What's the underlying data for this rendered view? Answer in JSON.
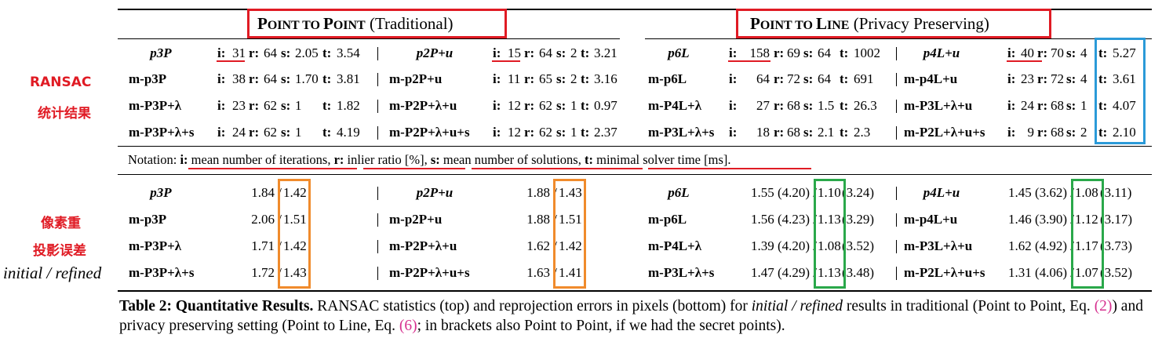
{
  "headers": {
    "left": {
      "big1": "P",
      "small1": "OINT TO ",
      "big2": "P",
      "small2": "OINT",
      "rest": " (Traditional)"
    },
    "right": {
      "big1": "P",
      "small1": "OINT TO ",
      "big2": "L",
      "small2": "INE",
      "rest": " (Privacy Preserving)"
    }
  },
  "side_labels": {
    "ransac_line1": "RANSAC",
    "ransac_line2": "统计结果",
    "reproj_line1": "像素重",
    "reproj_line2": "投影误差",
    "initial_refined": "initial / refined"
  },
  "stat_labels": {
    "i": "i:",
    "r": "r:",
    "s": "s:",
    "t": "t:"
  },
  "ransac": {
    "left": [
      {
        "m1": "p3P",
        "i1": "31",
        "r1": "64",
        "s1": "2.05",
        "t1": "3.54",
        "m2": "p2P+u",
        "i2": "15",
        "r2": "64",
        "s2": "2",
        "t2": "3.21"
      },
      {
        "m1": "m-p3P",
        "i1": "38",
        "r1": "64",
        "s1": "1.70",
        "t1": "3.81",
        "m2": "m-p2P+u",
        "i2": "11",
        "r2": "65",
        "s2": "2",
        "t2": "3.16"
      },
      {
        "m1": "m-P3P+λ",
        "i1": "23",
        "r1": "62",
        "s1": "1",
        "t1": "1.82",
        "m2": "m-P2P+λ+u",
        "i2": "12",
        "r2": "62",
        "s2": "1",
        "t2": "0.97"
      },
      {
        "m1": "m-P3P+λ+s",
        "i1": "24",
        "r1": "62",
        "s1": "1",
        "t1": "4.19",
        "m2": "m-P2P+λ+u+s",
        "i2": "12",
        "r2": "62",
        "s2": "1",
        "t2": "2.37"
      }
    ],
    "right": [
      {
        "m1": "p6L",
        "i1": "158",
        "r1": "69",
        "s1": "64",
        "t1": "1002",
        "m2": "p4L+u",
        "i2": "40",
        "r2": "70",
        "s2": "4",
        "t2": "5.27"
      },
      {
        "m1": "m-p6L",
        "i1": "64",
        "r1": "72",
        "s1": "64",
        "t1": "691",
        "m2": "m-p4L+u",
        "i2": "23",
        "r2": "72",
        "s2": "4",
        "t2": "3.61"
      },
      {
        "m1": "m-P4L+λ",
        "i1": "27",
        "r1": "68",
        "s1": "1.5",
        "t1": "26.3",
        "m2": "m-P3L+λ+u",
        "i2": "24",
        "r2": "68",
        "s2": "1",
        "t2": "4.07"
      },
      {
        "m1": "m-P3L+λ+s",
        "i1": "18",
        "r1": "68",
        "s1": "2.1",
        "t1": "2.3",
        "m2": "m-P2L+λ+u+s",
        "i2": "9",
        "r2": "68",
        "s2": "2",
        "t2": "2.10"
      }
    ]
  },
  "notation": {
    "prefix": "Notation: ",
    "i_label": "i:",
    "i_text": " mean number of iterations",
    "r_label": "r:",
    "r_text": " inlier ratio [%]",
    "s_label": "s:",
    "s_text": " mean number of solutions",
    "t_label": "t:",
    "t_text": " minimal solver time [ms]",
    "sep": ", ",
    "end": "."
  },
  "reproj": {
    "left": [
      {
        "m1": "p3P",
        "a1": "1.84 / ",
        "b1": "1.42",
        "m2": "p2P+u",
        "a2": "1.88 / ",
        "b2": "1.43"
      },
      {
        "m1": "m-p3P",
        "a1": "2.06 / ",
        "b1": "1.51",
        "m2": "m-p2P+u",
        "a2": "1.88 / ",
        "b2": "1.51"
      },
      {
        "m1": "m-P3P+λ",
        "a1": "1.71 / ",
        "b1": "1.42",
        "m2": "m-P2P+λ+u",
        "a2": "1.62 / ",
        "b2": "1.42"
      },
      {
        "m1": "m-P3P+λ+s",
        "a1": "1.72 / ",
        "b1": "1.43",
        "m2": "m-P2P+λ+u+s",
        "a2": "1.63 / ",
        "b2": "1.41"
      }
    ],
    "right": [
      {
        "m1": "p6L",
        "a1": "1.55 (4.20) / ",
        "b1": "1.10",
        "c1": " (3.24)",
        "m2": "p4L+u",
        "a2": "1.45 (3.62) / ",
        "b2": "1.08",
        "c2": " (3.11)"
      },
      {
        "m1": "m-p6L",
        "a1": "1.56 (4.23) / ",
        "b1": "1.13",
        "c1": " (3.29)",
        "m2": "m-p4L+u",
        "a2": "1.46 (3.90) / ",
        "b2": "1.12",
        "c2": " (3.17)"
      },
      {
        "m1": "m-P4L+λ",
        "a1": "1.39 (4.20) / ",
        "b1": "1.08",
        "c1": " (3.52)",
        "m2": "m-P3L+λ+u",
        "a2": "1.62 (4.92) / ",
        "b2": "1.17",
        "c2": " (3.73)"
      },
      {
        "m1": "m-P3L+λ+s",
        "a1": "1.47 (4.29) / ",
        "b1": "1.13",
        "c1": " (3.48)",
        "m2": "m-P2L+λ+u+s",
        "a2": "1.31 (4.06) / ",
        "b2": "1.07",
        "c2": " (3.52)"
      }
    ]
  },
  "caption": {
    "label": "Table 2: Quantitative Results.",
    "t1": " RANSAC statistics (top) and reprojection errors in pixels (bottom) for ",
    "em": "initial / refined",
    "t2": " results in traditional (Point to Point, Eq. ",
    "ref1": "(2)",
    "t3": ") and privacy preserving setting (Point to Line, Eq. ",
    "ref2": "(6)",
    "t4": "; in brackets also Point to Point, if we had the secret points)."
  }
}
